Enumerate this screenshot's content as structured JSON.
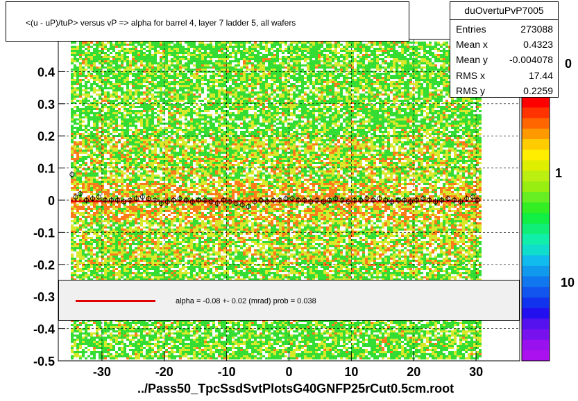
{
  "title": "<(u - uP)/tuP> versus   vP => alpha for barrel 4, layer 7 ladder 5, all wafers",
  "stats": {
    "name": "duOvertuPvP7005",
    "entries_label": "Entries",
    "entries": "273088",
    "meanx_label": "Mean x",
    "meanx": "0.4323",
    "meany_label": "Mean y",
    "meany": "-0.004078",
    "rmsx_label": "RMS x",
    "rmsx": "17.44",
    "rmsy_label": "RMS y",
    "rmsy": "0.2259"
  },
  "fit_text": "alpha =   -0.08 +-  0.02 (mrad) prob = 0.038",
  "x_axis_title": "../Pass50_TpcSsdSvtPlotsG40GNFP25rCut0.5cm.root",
  "z_axis_labels": [
    "0",
    "1",
    "10"
  ],
  "colors": {
    "fit_line": "#e00000",
    "low": "#33dd33",
    "mid": "#d8e82a",
    "high": "#ff7a1a",
    "palette": [
      "#ff0000",
      "#ff3300",
      "#ff6600",
      "#ff9900",
      "#ffcc00",
      "#ffee00",
      "#ddee00",
      "#bbee11",
      "#99ee11",
      "#66ee22",
      "#33ee22",
      "#11ee44",
      "#11ee77",
      "#11eeaa",
      "#11ddcc",
      "#11bbee",
      "#1199ee",
      "#1177ee",
      "#1155ee",
      "#1133ee",
      "#2211ee",
      "#5511ee",
      "#7711ee",
      "#9911ee",
      "#aa11ee"
    ]
  },
  "chart_data": {
    "type": "heatmap",
    "xlim": [
      -37,
      37
    ],
    "ylim": [
      -0.5,
      0.5
    ],
    "x_ticks": [
      -30,
      -20,
      -10,
      0,
      10,
      20,
      30
    ],
    "y_ticks": [
      -0.5,
      -0.4,
      -0.3,
      -0.2,
      -0.1,
      0,
      0.1,
      0.2,
      0.3,
      0.4
    ],
    "x_tick_labels": [
      "-30",
      "-20",
      "-10",
      "0",
      "10",
      "20",
      "30"
    ],
    "y_tick_labels": [
      "-0.5",
      "-0.4",
      "-0.3",
      "-0.2",
      "-0.1",
      "0",
      "0.1",
      "0.2",
      "0.3",
      "0.4"
    ],
    "grid": true,
    "occupied_x_range": [
      -35,
      30.5
    ],
    "profile_points": {
      "x": [
        -34.8,
        -34.2,
        -33.5,
        -32.5,
        -31.5,
        -30.5,
        -29.5,
        -28.5,
        -27.5,
        -26.5,
        -25.5,
        -24.5,
        -23.5,
        -22.5,
        -21.5,
        -20.5,
        -19.5,
        -18.5,
        -17.5,
        -16.5,
        -15.5,
        -14.5,
        -13.5,
        -12.5,
        -11.5,
        -10.5,
        -9.5,
        -8.5,
        -7.5,
        -6.5,
        -5.5,
        -4.5,
        -3.5,
        -2.5,
        -1.5,
        -0.5,
        0.5,
        1.5,
        2.5,
        3.5,
        4.5,
        5.5,
        6.5,
        7.5,
        8.5,
        9.5,
        10.5,
        11.5,
        12.5,
        13.5,
        14.5,
        15.5,
        16.5,
        17.5,
        18.5,
        19.5,
        20.5,
        21.5,
        22.5,
        23.5,
        24.5,
        25.5,
        26.5,
        27.5,
        28.5,
        29.5,
        30.2
      ],
      "y": [
        0.08,
        0.01,
        0.02,
        0.0,
        0.005,
        0.01,
        0.0,
        0.0,
        0.0,
        -0.005,
        0.0,
        0.005,
        0.01,
        0.005,
        0.0,
        -0.01,
        -0.005,
        0.0,
        0.005,
        0.0,
        -0.005,
        0.0,
        0.0,
        -0.005,
        -0.01,
        0.0,
        -0.005,
        -0.01,
        -0.015,
        -0.02,
        -0.005,
        0.0,
        -0.005,
        0.0,
        0.0,
        0.005,
        0.005,
        0.0,
        0.0,
        -0.005,
        0.0,
        -0.005,
        0.0,
        0.005,
        0.0,
        -0.005,
        0.0,
        0.0,
        0.005,
        0.0,
        0.005,
        0.0,
        -0.005,
        0.0,
        0.0,
        -0.005,
        0.0,
        0.005,
        0.0,
        -0.005,
        0.0,
        0.005,
        0.0,
        -0.005,
        0.005,
        0.01,
        0.0
      ]
    },
    "fit_line": {
      "x": [
        -35,
        30.5
      ],
      "y": [
        -0.004,
        -0.004
      ]
    },
    "z_scale": "log"
  }
}
